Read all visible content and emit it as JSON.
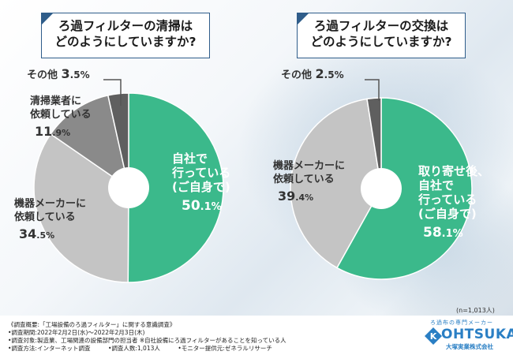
{
  "colors": {
    "self": "#3bb98b",
    "maker": "#c4c4c4",
    "contractor": "#8a8a8a",
    "other": "#5f5f5f",
    "title_border": "#2f5d8a",
    "logo": "#2a7fc4"
  },
  "chart_data": [
    {
      "type": "pie",
      "title": "ろ過フィルターの清掃はどのようにしていますか?",
      "title_lines": [
        "ろ過フィルターの清掃は",
        "どのようにしていますか?"
      ],
      "unit": "%",
      "slices": [
        {
          "label": "自社で行っている(ご自身で)",
          "label_lines": [
            "自社で",
            "行っている",
            "(ご自身で)"
          ],
          "value": 50.1,
          "value_main": "50",
          "value_dec": ".1",
          "color": "#3bb98b"
        },
        {
          "label": "機器メーカーに依頼している",
          "label_lines": [
            "機器メーカーに",
            "依頼している"
          ],
          "value": 34.5,
          "value_main": "34",
          "value_dec": ".5",
          "color": "#c4c4c4"
        },
        {
          "label": "清掃業者に依頼している",
          "label_lines": [
            "清掃業者に",
            "依頼している"
          ],
          "value": 11.9,
          "value_main": "11",
          "value_dec": ".9",
          "color": "#8a8a8a"
        },
        {
          "label": "その他",
          "label_lines": [
            "その他"
          ],
          "value": 3.5,
          "value_main": "3",
          "value_dec": ".5",
          "color": "#5f5f5f"
        }
      ]
    },
    {
      "type": "pie",
      "title": "ろ過フィルターの交換はどのようにしていますか?",
      "title_lines": [
        "ろ過フィルターの交換は",
        "どのようにしていますか?"
      ],
      "unit": "%",
      "slices": [
        {
          "label": "取り寄せ後、自社で行っている(ご自身で)",
          "label_lines": [
            "取り寄せ後、",
            "自社で",
            "行っている",
            "(ご自身で)"
          ],
          "value": 58.1,
          "value_main": "58",
          "value_dec": ".1",
          "color": "#3bb98b"
        },
        {
          "label": "機器メーカーに依頼している",
          "label_lines": [
            "機器メーカーに",
            "依頼している"
          ],
          "value": 39.4,
          "value_main": "39",
          "value_dec": ".4",
          "color": "#c4c4c4"
        },
        {
          "label": "その他",
          "label_lines": [
            "その他"
          ],
          "value": 2.5,
          "value_main": "2",
          "value_dec": ".5",
          "color": "#5f5f5f"
        }
      ]
    }
  ],
  "sample_note": "(n=1,013人)",
  "footer": {
    "lines": [
      "《調査概要:「工場設備のろ過フィルター」に関する意識調査》",
      "•調査期間:2022年2月2日(水)〜2022年2月3日(木)",
      "•調査対象:製造業、工場関連の設備部門の担当者 ※自社設備にろ過フィルターがあることを知っている人",
      "•調査方法:インターネット調査　　　•調査人数:1,013人　　　•モニター提供元:ゼネラルリサーチ"
    ]
  },
  "logo": {
    "tagline": "ろ過布の専門メーカー",
    "word": "OHTSUKA",
    "company": "大塚実業株式会社"
  }
}
